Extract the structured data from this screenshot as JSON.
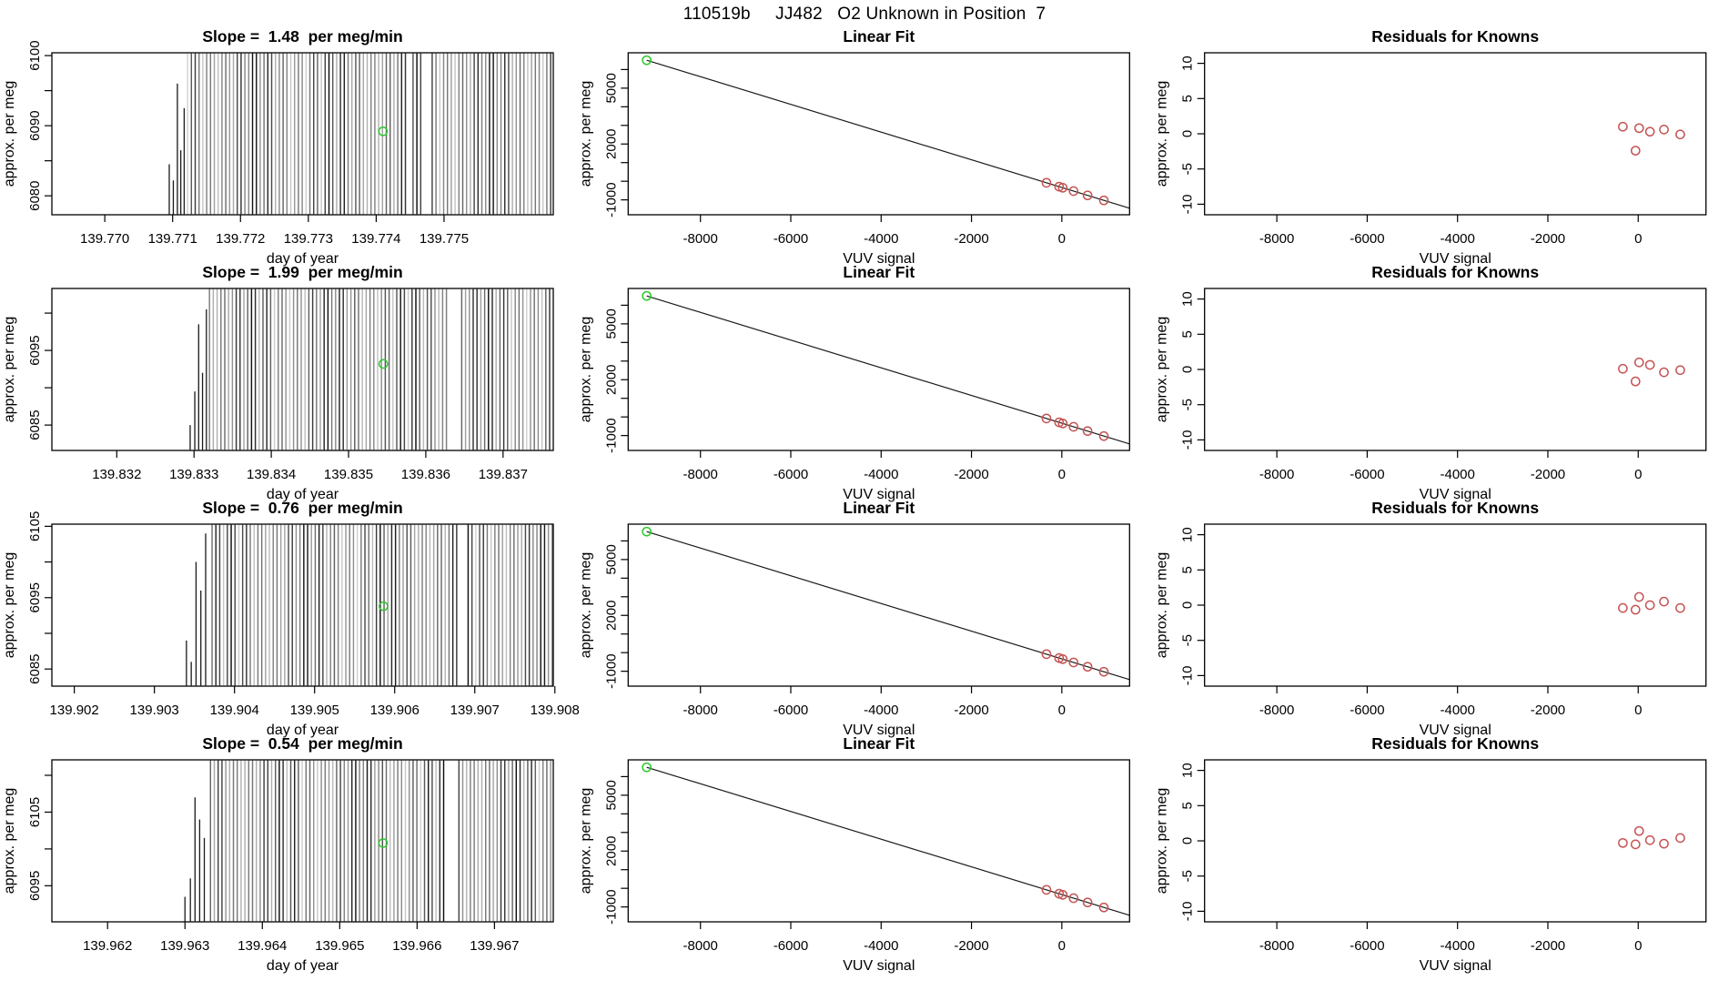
{
  "page": {
    "title": "110519b     JJ482   O2 Unknown in Position  7",
    "background": "#ffffff"
  },
  "colors": {
    "frame": "#000000",
    "text": "#000000",
    "comb_line": "#000000",
    "fit_line": "#1a1a1a",
    "known_point": "#c65353",
    "unknown_point": "#2fc72f"
  },
  "chart_data": {
    "type": "line",
    "figure_layout": "4 rows x 3 columns",
    "fit_common": {
      "type": "scatter",
      "title": "Linear Fit",
      "xlabel": "VUV signal",
      "ylabel": "approx. per meg",
      "xlim": [
        -9600,
        1500
      ],
      "ylim": [
        -1800,
        6900
      ],
      "x_ticks": [
        -8000,
        -6000,
        -4000,
        -2000,
        0
      ],
      "y_ticks": [
        -1000,
        0,
        1000,
        2000,
        3000,
        4000,
        5000,
        6000
      ],
      "y_tick_labels": [
        "-1000",
        "",
        "",
        "2000",
        "",
        "",
        "5000",
        ""
      ],
      "line": {
        "x1": -9190,
        "y1": 6500,
        "x2": 1500,
        "y2": -1450
      },
      "unknown_point": [
        -9190,
        6500
      ],
      "known_points_x": [
        -340,
        -60,
        20,
        260,
        570,
        930
      ],
      "legend": "none",
      "grid": false
    },
    "residual_common": {
      "type": "scatter",
      "title": "Residuals for Knowns",
      "xlabel": "VUV signal",
      "ylabel": "approx. per meg",
      "xlim": [
        -9600,
        1500
      ],
      "ylim": [
        -11.5,
        11.5
      ],
      "x_ticks": [
        -8000,
        -6000,
        -4000,
        -2000,
        0
      ],
      "y_ticks": [
        -10,
        -5,
        0,
        5,
        10
      ],
      "legend": "none",
      "grid": false
    },
    "rows": [
      {
        "slope_per_meg_min": 1.48,
        "slope": {
          "title": "Slope =  1.48  per meg/min",
          "xlabel": "day of year",
          "ylabel": "approx. per meg",
          "xlim": [
            139.76922,
            139.77661
          ],
          "ylim": [
            6077.3,
            6100.4
          ],
          "x_ticks": [
            139.77,
            139.771,
            139.772,
            139.773,
            139.774,
            139.775
          ],
          "x_tick_labels": [
            "139.770",
            "139.771",
            "139.772",
            "139.773",
            "139.774",
            "139.775"
          ],
          "y_ticks": [
            6080,
            6085,
            6090,
            6095,
            6100
          ],
          "y_tick_labels": [
            "6080",
            "",
            "6090",
            "",
            "6100"
          ],
          "burst_start": 139.77122,
          "lead_spikes": [
            [
              139.77095,
              6084.5
            ],
            [
              139.77101,
              6082.2
            ],
            [
              139.77107,
              6096.0
            ],
            [
              139.77112,
              6086.5
            ],
            [
              139.77117,
              6092.5
            ]
          ],
          "gaps": [
            [
              139.77444,
              139.77452
            ],
            [
              139.77468,
              139.77482
            ]
          ],
          "unknown_point": [
            139.7741,
            6089.2
          ]
        },
        "residuals": [
          [
            -340,
            1.0
          ],
          [
            -60,
            -2.4
          ],
          [
            20,
            0.8
          ],
          [
            260,
            0.3
          ],
          [
            570,
            0.6
          ],
          [
            930,
            -0.1
          ]
        ]
      },
      {
        "slope_per_meg_min": 1.99,
        "slope": {
          "title": "Slope =  1.99  per meg/min",
          "xlabel": "day of year",
          "ylabel": "approx. per meg",
          "xlim": [
            139.83116,
            139.83765
          ],
          "ylim": [
            6081.6,
            6103.3
          ],
          "x_ticks": [
            139.832,
            139.833,
            139.834,
            139.835,
            139.836,
            139.837
          ],
          "x_tick_labels": [
            "139.832",
            "139.833",
            "139.834",
            "139.835",
            "139.836",
            "139.837"
          ],
          "y_ticks": [
            6085,
            6090,
            6095,
            6100
          ],
          "y_tick_labels": [
            "6085",
            "",
            "6095",
            ""
          ],
          "burst_start": 139.8332,
          "lead_spikes": [
            [
              139.83295,
              6085.0
            ],
            [
              139.83301,
              6089.5
            ],
            [
              139.83306,
              6098.5
            ],
            [
              139.83311,
              6092.0
            ],
            [
              139.83316,
              6100.5
            ]
          ],
          "gaps": [
            [
              139.8363,
              139.83646
            ]
          ],
          "unknown_point": [
            139.83545,
            6093.2
          ]
        },
        "residuals": [
          [
            -340,
            0.1
          ],
          [
            -60,
            -1.7
          ],
          [
            20,
            1.0
          ],
          [
            260,
            0.65
          ],
          [
            570,
            -0.4
          ],
          [
            930,
            -0.1
          ]
        ]
      },
      {
        "slope_per_meg_min": 0.76,
        "slope": {
          "title": "Slope =  0.76  per meg/min",
          "xlabel": "day of year",
          "ylabel": "approx. per meg",
          "xlim": [
            139.90172,
            139.90798
          ],
          "ylim": [
            6082.6,
            6105.3
          ],
          "x_ticks": [
            139.902,
            139.903,
            139.904,
            139.905,
            139.906,
            139.907,
            139.908
          ],
          "x_tick_labels": [
            "139.902",
            "139.903",
            "139.904",
            "139.905",
            "139.906",
            "139.907",
            "139.908"
          ],
          "y_ticks": [
            6085,
            6090,
            6095,
            6100,
            6105
          ],
          "y_tick_labels": [
            "6085",
            "",
            "6095",
            "",
            "6105"
          ],
          "burst_start": 139.90372,
          "lead_spikes": [
            [
              139.9034,
              6089.0
            ],
            [
              139.90346,
              6086.0
            ],
            [
              139.90352,
              6100.0
            ],
            [
              139.90358,
              6096.0
            ],
            [
              139.90364,
              6104.0
            ]
          ],
          "gaps": [
            [
              139.90582,
              139.90586
            ],
            [
              139.90679,
              139.90689
            ]
          ],
          "unknown_point": [
            139.90586,
            6093.8
          ]
        },
        "residuals": [
          [
            -340,
            -0.4
          ],
          [
            -60,
            -0.65
          ],
          [
            20,
            1.16
          ],
          [
            260,
            0.0
          ],
          [
            570,
            0.5
          ],
          [
            930,
            -0.4
          ]
        ]
      },
      {
        "slope_per_meg_min": 0.54,
        "slope": {
          "title": "Slope =  0.54  per meg/min",
          "xlabel": "day of year",
          "ylabel": "approx. per meg",
          "xlim": [
            139.96128,
            139.96776
          ],
          "ylim": [
            6090.1,
            6112.1
          ],
          "x_ticks": [
            139.962,
            139.963,
            139.964,
            139.965,
            139.966,
            139.967
          ],
          "x_tick_labels": [
            "139.962",
            "139.963",
            "139.964",
            "139.965",
            "139.966",
            "139.967"
          ],
          "y_ticks": [
            6095,
            6100,
            6105,
            6110
          ],
          "y_tick_labels": [
            "6095",
            "",
            "6105",
            ""
          ],
          "burst_start": 139.96333,
          "lead_spikes": [
            [
              139.963,
              6093.5
            ],
            [
              139.96307,
              6096.0
            ],
            [
              139.96313,
              6107.0
            ],
            [
              139.96319,
              6104.0
            ],
            [
              139.96325,
              6101.5
            ]
          ],
          "gaps": [
            [
              139.96637,
              139.9665
            ]
          ],
          "unknown_point": [
            139.96556,
            6100.8
          ]
        },
        "residuals": [
          [
            -340,
            -0.3
          ],
          [
            -60,
            -0.5
          ],
          [
            20,
            1.4
          ],
          [
            260,
            0.1
          ],
          [
            570,
            -0.4
          ],
          [
            930,
            0.4
          ]
        ]
      }
    ]
  }
}
